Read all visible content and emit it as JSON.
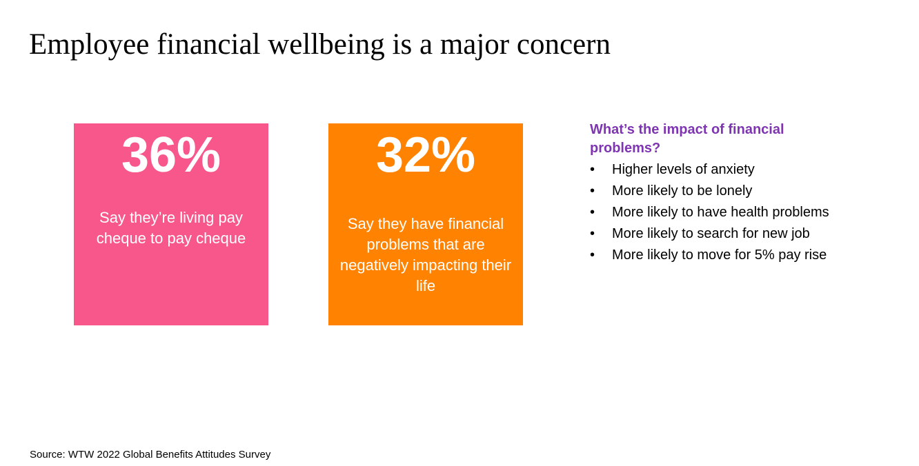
{
  "slide": {
    "title": "Employee financial wellbeing is a major concern"
  },
  "stats": [
    {
      "value": "36%",
      "text": "Say they’re living pay cheque to pay cheque",
      "color": "#F7578A"
    },
    {
      "value": "32%",
      "text": "Say they have financial problems that are negatively impacting their life",
      "color": "#FF8200"
    }
  ],
  "impact": {
    "heading": "What’s the impact of financial problems?",
    "heading_color": "#7F35B2",
    "bullet": "•",
    "items": [
      "Higher levels of anxiety",
      "More likely to be lonely",
      "More likely to have health problems",
      "More likely to search for new job",
      "More likely to move for 5% pay rise"
    ]
  },
  "source": "Source: WTW 2022 Global Benefits Attitudes Survey"
}
